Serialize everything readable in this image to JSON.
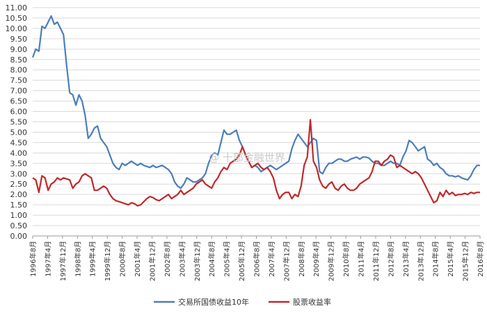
{
  "chart_data": {
    "type": "line",
    "title": "",
    "xlabel": "",
    "ylabel": "",
    "ylim": [
      0,
      11
    ],
    "grid": true,
    "legend_position": "bottom",
    "y_ticks": [
      "0.00",
      "0.50",
      "1.00",
      "1.50",
      "2.00",
      "2.50",
      "3.00",
      "3.50",
      "4.00",
      "4.50",
      "5.00",
      "5.50",
      "6.00",
      "6.50",
      "7.00",
      "7.50",
      "8.00",
      "8.50",
      "9.00",
      "9.50",
      "10.00",
      "10.50",
      "11.00"
    ],
    "x_tick_labels": [
      "1996年8月",
      "1997年4月",
      "1997年12月",
      "1998年8月",
      "1999年4月",
      "1999年12月",
      "2000年8月",
      "2001年4月",
      "2001年12月",
      "2002年8月",
      "2003年4月",
      "2003年12月",
      "2004年8月",
      "2005年4月",
      "2005年12月",
      "2006年8月",
      "2007年4月",
      "2007年12月",
      "2008年8月",
      "2009年4月",
      "2009年12月",
      "2010年8月",
      "2011年4月",
      "2011年12月",
      "2012年8月",
      "2013年4月",
      "2013年12月",
      "2014年8月",
      "2015年4月",
      "2015年12月",
      "2016年8月"
    ],
    "watermark": "@ 十部金融世界",
    "series": [
      {
        "name": "交易所国债收益10年",
        "color": "#4a7ebb",
        "points": [
          [
            0,
            8.6
          ],
          [
            1,
            9.0
          ],
          [
            2,
            8.9
          ],
          [
            3,
            10.1
          ],
          [
            4,
            10.0
          ],
          [
            5,
            10.3
          ],
          [
            6,
            10.6
          ],
          [
            7,
            10.2
          ],
          [
            8,
            10.3
          ],
          [
            9,
            10.0
          ],
          [
            10,
            9.7
          ],
          [
            11,
            8.2
          ],
          [
            12,
            6.9
          ],
          [
            13,
            6.8
          ],
          [
            14,
            6.3
          ],
          [
            15,
            6.8
          ],
          [
            16,
            6.5
          ],
          [
            17,
            5.8
          ],
          [
            18,
            4.7
          ],
          [
            19,
            4.9
          ],
          [
            20,
            5.2
          ],
          [
            21,
            5.3
          ],
          [
            22,
            4.7
          ],
          [
            23,
            4.5
          ],
          [
            24,
            4.3
          ],
          [
            25,
            3.9
          ],
          [
            26,
            3.5
          ],
          [
            27,
            3.3
          ],
          [
            28,
            3.2
          ],
          [
            29,
            3.5
          ],
          [
            30,
            3.4
          ],
          [
            31,
            3.5
          ],
          [
            32,
            3.6
          ],
          [
            33,
            3.5
          ],
          [
            34,
            3.4
          ],
          [
            35,
            3.5
          ],
          [
            36,
            3.4
          ],
          [
            37,
            3.35
          ],
          [
            38,
            3.3
          ],
          [
            39,
            3.4
          ],
          [
            40,
            3.3
          ],
          [
            41,
            3.35
          ],
          [
            42,
            3.4
          ],
          [
            43,
            3.3
          ],
          [
            44,
            3.2
          ],
          [
            45,
            3.0
          ],
          [
            46,
            2.6
          ],
          [
            47,
            2.4
          ],
          [
            48,
            2.3
          ],
          [
            49,
            2.5
          ],
          [
            50,
            2.8
          ],
          [
            51,
            2.7
          ],
          [
            52,
            2.6
          ],
          [
            53,
            2.6
          ],
          [
            54,
            2.7
          ],
          [
            55,
            2.8
          ],
          [
            56,
            3.0
          ],
          [
            57,
            3.5
          ],
          [
            58,
            3.9
          ],
          [
            59,
            4.0
          ],
          [
            60,
            3.9
          ],
          [
            61,
            4.5
          ],
          [
            62,
            5.1
          ],
          [
            63,
            4.9
          ],
          [
            64,
            4.9
          ],
          [
            65,
            5.0
          ],
          [
            66,
            5.1
          ],
          [
            67,
            4.6
          ],
          [
            68,
            4.3
          ],
          [
            69,
            3.9
          ],
          [
            70,
            3.6
          ],
          [
            71,
            3.3
          ],
          [
            72,
            3.4
          ],
          [
            73,
            3.3
          ],
          [
            74,
            3.1
          ],
          [
            75,
            3.2
          ],
          [
            76,
            3.3
          ],
          [
            77,
            3.4
          ],
          [
            78,
            3.3
          ],
          [
            79,
            3.2
          ],
          [
            80,
            3.3
          ],
          [
            81,
            3.4
          ],
          [
            82,
            3.5
          ],
          [
            83,
            3.6
          ],
          [
            84,
            4.2
          ],
          [
            85,
            4.6
          ],
          [
            86,
            4.9
          ],
          [
            87,
            4.7
          ],
          [
            88,
            4.5
          ],
          [
            89,
            4.3
          ],
          [
            90,
            4.5
          ],
          [
            91,
            4.7
          ],
          [
            92,
            4.6
          ],
          [
            93,
            3.1
          ],
          [
            94,
            3.0
          ],
          [
            95,
            3.3
          ],
          [
            96,
            3.5
          ],
          [
            97,
            3.5
          ],
          [
            98,
            3.6
          ],
          [
            99,
            3.7
          ],
          [
            100,
            3.7
          ],
          [
            101,
            3.6
          ],
          [
            102,
            3.6
          ],
          [
            103,
            3.7
          ],
          [
            104,
            3.75
          ],
          [
            105,
            3.8
          ],
          [
            106,
            3.7
          ],
          [
            107,
            3.8
          ],
          [
            108,
            3.8
          ],
          [
            109,
            3.75
          ],
          [
            110,
            3.6
          ],
          [
            111,
            3.5
          ],
          [
            112,
            3.5
          ],
          [
            113,
            3.4
          ],
          [
            114,
            3.4
          ],
          [
            115,
            3.5
          ],
          [
            116,
            3.6
          ],
          [
            117,
            3.5
          ],
          [
            118,
            3.5
          ],
          [
            119,
            3.4
          ],
          [
            120,
            3.8
          ],
          [
            121,
            4.1
          ],
          [
            122,
            4.6
          ],
          [
            123,
            4.5
          ],
          [
            124,
            4.3
          ],
          [
            125,
            4.1
          ],
          [
            126,
            4.2
          ],
          [
            127,
            4.3
          ],
          [
            128,
            3.7
          ],
          [
            129,
            3.6
          ],
          [
            130,
            3.4
          ],
          [
            131,
            3.5
          ],
          [
            132,
            3.3
          ],
          [
            133,
            3.2
          ],
          [
            134,
            3.0
          ],
          [
            135,
            2.9
          ],
          [
            136,
            2.9
          ],
          [
            137,
            2.85
          ],
          [
            138,
            2.9
          ],
          [
            139,
            2.8
          ],
          [
            140,
            2.75
          ],
          [
            141,
            2.7
          ],
          [
            142,
            2.9
          ],
          [
            143,
            3.2
          ],
          [
            144,
            3.4
          ],
          [
            145,
            3.4
          ]
        ]
      },
      {
        "name": "股票收益率",
        "color": "#c0292b",
        "points": [
          [
            0,
            2.8
          ],
          [
            1,
            2.7
          ],
          [
            2,
            2.1
          ],
          [
            3,
            2.9
          ],
          [
            4,
            2.8
          ],
          [
            5,
            2.2
          ],
          [
            6,
            2.5
          ],
          [
            7,
            2.6
          ],
          [
            8,
            2.8
          ],
          [
            9,
            2.7
          ],
          [
            10,
            2.8
          ],
          [
            11,
            2.75
          ],
          [
            12,
            2.7
          ],
          [
            13,
            2.3
          ],
          [
            14,
            2.5
          ],
          [
            15,
            2.6
          ],
          [
            16,
            2.9
          ],
          [
            17,
            3.0
          ],
          [
            18,
            2.9
          ],
          [
            19,
            2.8
          ],
          [
            20,
            2.2
          ],
          [
            21,
            2.2
          ],
          [
            22,
            2.3
          ],
          [
            23,
            2.4
          ],
          [
            24,
            2.3
          ],
          [
            25,
            2.0
          ],
          [
            26,
            1.8
          ],
          [
            27,
            1.7
          ],
          [
            28,
            1.65
          ],
          [
            29,
            1.6
          ],
          [
            30,
            1.55
          ],
          [
            31,
            1.5
          ],
          [
            32,
            1.6
          ],
          [
            33,
            1.55
          ],
          [
            34,
            1.45
          ],
          [
            35,
            1.5
          ],
          [
            36,
            1.65
          ],
          [
            37,
            1.8
          ],
          [
            38,
            1.9
          ],
          [
            39,
            1.85
          ],
          [
            40,
            1.75
          ],
          [
            41,
            1.7
          ],
          [
            42,
            1.8
          ],
          [
            43,
            1.9
          ],
          [
            44,
            2.0
          ],
          [
            45,
            1.8
          ],
          [
            46,
            1.9
          ],
          [
            47,
            2.0
          ],
          [
            48,
            2.2
          ],
          [
            49,
            2.0
          ],
          [
            50,
            2.1
          ],
          [
            51,
            2.2
          ],
          [
            52,
            2.3
          ],
          [
            53,
            2.5
          ],
          [
            54,
            2.6
          ],
          [
            55,
            2.7
          ],
          [
            56,
            2.5
          ],
          [
            57,
            2.4
          ],
          [
            58,
            2.3
          ],
          [
            59,
            2.6
          ],
          [
            60,
            2.8
          ],
          [
            61,
            3.1
          ],
          [
            62,
            3.3
          ],
          [
            63,
            3.2
          ],
          [
            64,
            3.5
          ],
          [
            65,
            3.6
          ],
          [
            66,
            3.7
          ],
          [
            67,
            3.9
          ],
          [
            68,
            4.3
          ],
          [
            69,
            3.9
          ],
          [
            70,
            3.6
          ],
          [
            71,
            3.3
          ],
          [
            72,
            3.4
          ],
          [
            73,
            3.5
          ],
          [
            74,
            3.3
          ],
          [
            75,
            3.2
          ],
          [
            76,
            3.3
          ],
          [
            77,
            3.1
          ],
          [
            78,
            2.8
          ],
          [
            79,
            2.2
          ],
          [
            80,
            1.8
          ],
          [
            81,
            2.0
          ],
          [
            82,
            2.1
          ],
          [
            83,
            2.1
          ],
          [
            84,
            1.8
          ],
          [
            85,
            2.0
          ],
          [
            86,
            1.9
          ],
          [
            87,
            2.4
          ],
          [
            88,
            3.4
          ],
          [
            89,
            3.8
          ],
          [
            90,
            5.6
          ],
          [
            91,
            3.6
          ],
          [
            92,
            3.3
          ],
          [
            93,
            2.7
          ],
          [
            94,
            2.4
          ],
          [
            95,
            2.3
          ],
          [
            96,
            2.5
          ],
          [
            97,
            2.6
          ],
          [
            98,
            2.3
          ],
          [
            99,
            2.2
          ],
          [
            100,
            2.4
          ],
          [
            101,
            2.5
          ],
          [
            102,
            2.3
          ],
          [
            103,
            2.2
          ],
          [
            104,
            2.2
          ],
          [
            105,
            2.3
          ],
          [
            106,
            2.5
          ],
          [
            107,
            2.6
          ],
          [
            108,
            2.7
          ],
          [
            109,
            2.8
          ],
          [
            110,
            3.1
          ],
          [
            111,
            3.6
          ],
          [
            112,
            3.6
          ],
          [
            113,
            3.4
          ],
          [
            114,
            3.6
          ],
          [
            115,
            3.7
          ],
          [
            116,
            3.9
          ],
          [
            117,
            3.8
          ],
          [
            118,
            3.3
          ],
          [
            119,
            3.4
          ],
          [
            120,
            3.3
          ],
          [
            121,
            3.2
          ],
          [
            122,
            3.1
          ],
          [
            123,
            3.0
          ],
          [
            124,
            3.1
          ],
          [
            125,
            3.0
          ],
          [
            126,
            2.8
          ],
          [
            127,
            2.5
          ],
          [
            128,
            2.2
          ],
          [
            129,
            1.9
          ],
          [
            130,
            1.6
          ],
          [
            131,
            1.7
          ],
          [
            132,
            2.1
          ],
          [
            133,
            1.9
          ],
          [
            134,
            2.2
          ],
          [
            135,
            2.0
          ],
          [
            136,
            2.1
          ],
          [
            137,
            1.95
          ],
          [
            138,
            2.0
          ],
          [
            139,
            2.0
          ],
          [
            140,
            2.05
          ],
          [
            141,
            2.0
          ],
          [
            142,
            2.1
          ],
          [
            143,
            2.05
          ],
          [
            144,
            2.1
          ],
          [
            145,
            2.1
          ]
        ]
      }
    ]
  }
}
